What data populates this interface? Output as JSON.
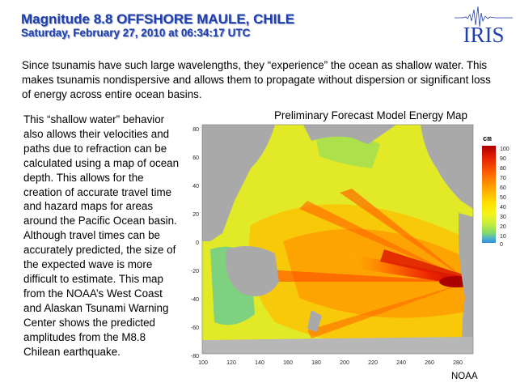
{
  "header": {
    "title": "Magnitude 8.8 OFFSHORE MAULE, CHILE",
    "subtitle": "Saturday,  February 27, 2010 at 06:34:17 UTC"
  },
  "logo": {
    "text": "IRIS",
    "icon": "seismogram-icon"
  },
  "intro_text": "Since tsunamis have such large wavelengths, they “experience” the ocean as shallow water. This makes tsunamis nondispersive and allows them to propagate without dispersion or significant loss of energy across entire ocean basins.",
  "body_text": "This “shallow water” behavior also allows their velocities and paths due to refraction can be calculated using a map of ocean depth. This allows for the creation of accurate travel time and hazard maps for areas around the Pacific Ocean basin. Although travel times can be accurately predicted, the size of the expected wave is more difficult to estimate. This map from the NOAA’s West Coast and Alaskan Tsunami Warning Center shows the predicted amplitudes from the M8.8 Chilean earthquake.",
  "map": {
    "title": "Preliminary Forecast Model Energy Map",
    "y_ticks": [
      "80",
      "60",
      "40",
      "20",
      "0",
      "-20",
      "-40",
      "-60",
      "-80"
    ],
    "x_ticks": [
      "100",
      "120",
      "140",
      "160",
      "180",
      "200",
      "220",
      "240",
      "260",
      "280"
    ],
    "colorbar": {
      "unit": "cm",
      "ticks": [
        "100",
        "90",
        "80",
        "70",
        "60",
        "50",
        "40",
        "30",
        "20",
        "10",
        "0"
      ],
      "colors": [
        "#aa0000",
        "#dd1a00",
        "#f04000",
        "#ff6a00",
        "#ff9400",
        "#ffbe00",
        "#ffe300",
        "#f3f41a",
        "#c8ee3a",
        "#7fd86a",
        "#52b4c8",
        "#2f8fd8"
      ]
    },
    "colors": {
      "land": "#a9a9a9",
      "ocean_background": "#e2ea27"
    }
  },
  "credit": "NOAA"
}
